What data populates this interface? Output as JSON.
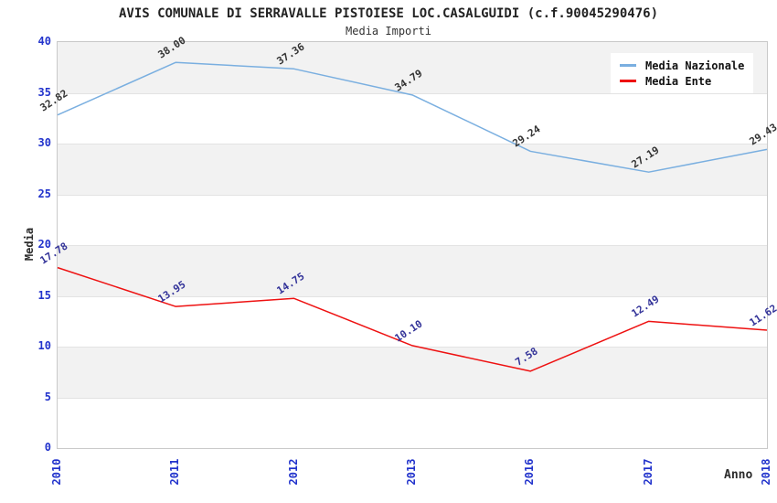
{
  "chart_data": {
    "type": "line",
    "title": "AVIS COMUNALE DI SERRAVALLE PISTOIESE LOC.CASALGUIDI (c.f.90045290476)",
    "subtitle": "Media Importi",
    "xlabel": "Anno",
    "ylabel": "Media",
    "categories": [
      "2010",
      "2011",
      "2012",
      "2013",
      "2016",
      "2017",
      "2018"
    ],
    "series": [
      {
        "name": "Media Nazionale",
        "color": "#7aafe0",
        "label_color": "#333333",
        "values": [
          32.82,
          38.0,
          37.36,
          34.79,
          29.24,
          27.19,
          29.43
        ]
      },
      {
        "name": "Media Ente",
        "color": "#ee1111",
        "label_color": "#333399",
        "values": [
          17.78,
          13.95,
          14.75,
          10.1,
          7.58,
          12.49,
          11.62
        ]
      }
    ],
    "ylim": [
      0,
      40
    ],
    "yticks": [
      0,
      5,
      10,
      15,
      20,
      25,
      30,
      35,
      40
    ],
    "value_label_decimals": 2,
    "grid": "horizontal-bands-alternating",
    "band_colors": [
      "#f2f2f2",
      "#ffffff"
    ],
    "gridline_color": "#e3e3e3",
    "tick_label_color": "#2233cc",
    "axis_border_color": "#c9c9c9",
    "legend_position": "top-right"
  }
}
